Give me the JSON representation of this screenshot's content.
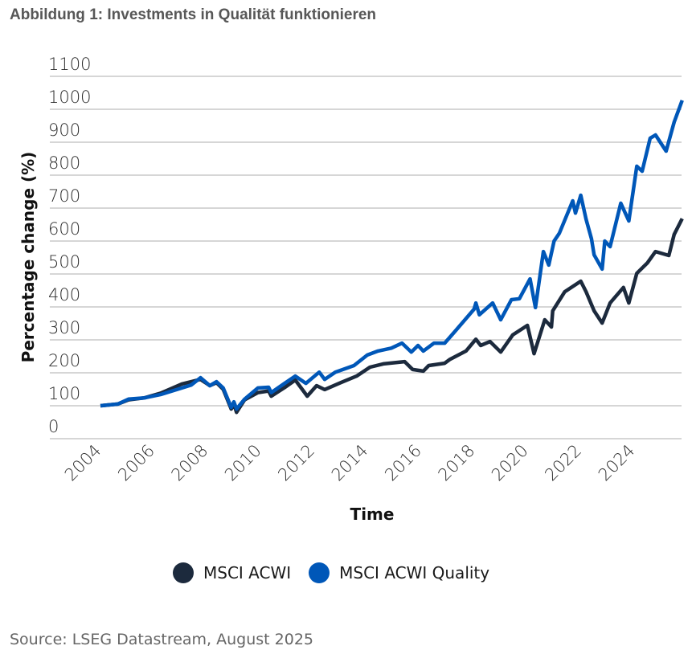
{
  "title": "Abbildung 1: Investments in Qualität funktionieren",
  "source": "Source: LSEG Datastream, August 2025",
  "chart_data": {
    "type": "line",
    "title": "Abbildung 1: Investments in Qualität funktionieren",
    "xlabel": "Time",
    "ylabel": "Percentage change (%)",
    "ylim": [
      0,
      1100
    ],
    "xlim": [
      2004,
      2025.8
    ],
    "yticks": [
      "0",
      "100",
      "200",
      "300",
      "400",
      "500",
      "600",
      "700",
      "800",
      "900",
      "1000",
      "1100"
    ],
    "xticks": [
      "2004",
      "2006",
      "2008",
      "2010",
      "2012",
      "2014",
      "2016",
      "2018",
      "2020",
      "2022",
      "2024"
    ],
    "grid": "horizontal",
    "legend_position": "bottom",
    "series": [
      {
        "name": "MSCI ACWI",
        "color": "#1c2a3d",
        "x": [
          2004.0,
          2004.65,
          2005.05,
          2005.65,
          2006.25,
          2007.05,
          2007.4,
          2007.75,
          2008.1,
          2008.35,
          2008.6,
          2008.9,
          2009.0,
          2009.1,
          2009.4,
          2009.9,
          2010.3,
          2010.4,
          2010.9,
          2011.3,
          2011.75,
          2012.1,
          2012.4,
          2013.0,
          2013.6,
          2014.1,
          2014.6,
          2015.4,
          2015.7,
          2016.1,
          2016.3,
          2016.9,
          2017.1,
          2017.7,
          2018.07,
          2018.25,
          2018.6,
          2019.0,
          2019.45,
          2020.0,
          2020.25,
          2020.65,
          2020.9,
          2020.95,
          2021.4,
          2022.0,
          2022.2,
          2022.5,
          2022.8,
          2023.1,
          2023.6,
          2023.8,
          2024.1,
          2024.5,
          2024.8,
          2025.3,
          2025.5,
          2025.8
        ],
        "y": [
          100,
          105,
          118,
          124,
          138,
          166,
          173,
          180,
          161,
          170,
          150,
          90,
          105,
          80,
          118,
          140,
          145,
          129,
          155,
          178,
          129,
          161,
          149,
          170,
          190,
          217,
          227,
          234,
          210,
          205,
          222,
          229,
          241,
          266,
          302,
          283,
          295,
          263,
          315,
          344,
          258,
          361,
          339,
          388,
          446,
          478,
          446,
          388,
          351,
          412,
          459,
          412,
          502,
          534,
          568,
          556,
          620,
          668
        ]
      },
      {
        "name": "MSCI ACWI Quality",
        "color": "#0057b8",
        "x": [
          2004.0,
          2004.65,
          2005.05,
          2005.65,
          2006.25,
          2007.05,
          2007.4,
          2007.75,
          2008.1,
          2008.35,
          2008.6,
          2008.9,
          2009.0,
          2009.1,
          2009.4,
          2009.9,
          2010.3,
          2010.4,
          2010.9,
          2011.3,
          2011.7,
          2012.2,
          2012.4,
          2012.8,
          2013.5,
          2014.0,
          2014.4,
          2014.9,
          2015.3,
          2015.65,
          2015.9,
          2016.1,
          2016.5,
          2016.9,
          2017.3,
          2018.0,
          2018.07,
          2018.2,
          2018.7,
          2019.0,
          2019.4,
          2019.7,
          2020.1,
          2020.3,
          2020.6,
          2020.8,
          2021.0,
          2021.2,
          2021.7,
          2021.8,
          2022.0,
          2022.2,
          2022.4,
          2022.5,
          2022.8,
          2022.9,
          2023.1,
          2023.5,
          2023.8,
          2024.1,
          2024.3,
          2024.6,
          2024.8,
          2025.2,
          2025.5,
          2025.8
        ],
        "y": [
          100,
          105,
          120,
          124,
          134,
          154,
          163,
          185,
          161,
          173,
          154,
          95,
          112,
          90,
          120,
          154,
          156,
          140,
          168,
          190,
          168,
          202,
          180,
          202,
          222,
          254,
          266,
          275,
          290,
          263,
          283,
          266,
          290,
          290,
          327,
          393,
          412,
          376,
          412,
          361,
          422,
          425,
          485,
          398,
          568,
          527,
          600,
          624,
          722,
          685,
          739,
          666,
          607,
          558,
          515,
          600,
          583,
          715,
          661,
          827,
          812,
          912,
          922,
          873,
          961,
          1027
        ]
      }
    ]
  }
}
